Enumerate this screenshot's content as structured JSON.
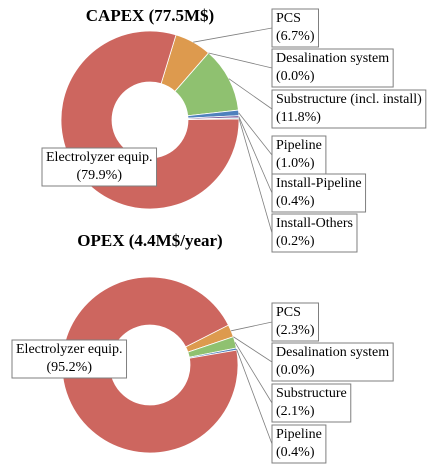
{
  "chart_data": [
    {
      "type": "donut",
      "title": "CAPEX (77.5M$)",
      "categories": [
        "PCS",
        "Desalination system",
        "Substructure (incl. install)",
        "Pipeline",
        "Install-Pipeline",
        "Install-Others",
        "Electrolyzer equip."
      ],
      "values": [
        6.7,
        0.0,
        11.8,
        1.0,
        0.4,
        0.2,
        79.9
      ],
      "value_labels": [
        "(6.7%)",
        "(0.0%)",
        "(11.8%)",
        "(1.0%)",
        "(0.4%)",
        "(0.2%)",
        "(79.9%)"
      ],
      "colors": [
        "#dd9a4e",
        "#a5a5a5",
        "#8fc170",
        "#4f81bd",
        "#8064a2",
        "#4bacc6",
        "#cd665f"
      ]
    },
    {
      "type": "donut",
      "title": "OPEX (4.4M$/year)",
      "categories": [
        "PCS",
        "Desalination system",
        "Substructure",
        "Pipeline",
        "Electrolyzer equip."
      ],
      "values": [
        2.3,
        0.0,
        2.1,
        0.4,
        95.2
      ],
      "value_labels": [
        "(2.3%)",
        "(0.0%)",
        "(2.1%)",
        "(0.4%)",
        "(95.2%)"
      ],
      "colors": [
        "#dd9a4e",
        "#a5a5a5",
        "#8fc170",
        "#4f81bd",
        "#cd665f"
      ]
    }
  ]
}
